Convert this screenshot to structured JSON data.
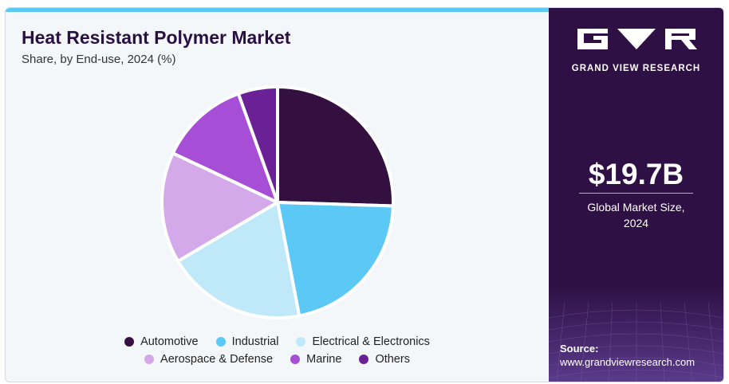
{
  "header": {
    "title": "Heat Resistant Polymer Market",
    "subtitle": "Share, by End-use, 2024 (%)"
  },
  "chart_data": {
    "type": "pie",
    "title": "Heat Resistant Polymer Market",
    "subtitle": "Share, by End-use, 2024 (%)",
    "legend_position": "bottom",
    "categories": [
      "Automotive",
      "Industrial",
      "Electrical & Electronics",
      "Aerospace & Defense",
      "Marine",
      "Others"
    ],
    "values": [
      25.5,
      21.5,
      19.5,
      15.5,
      12.5,
      5.5
    ],
    "colors": [
      "#341040",
      "#5bc8f5",
      "#bfe8f9",
      "#d3a9ea",
      "#a64fd6",
      "#6a2196"
    ]
  },
  "sidebar": {
    "brand": "GRAND VIEW RESEARCH",
    "market_size": "$19.7B",
    "market_size_label_line1": "Global Market Size,",
    "market_size_label_line2": "2024",
    "source_label": "Source:",
    "source_url": "www.grandviewresearch.com"
  }
}
